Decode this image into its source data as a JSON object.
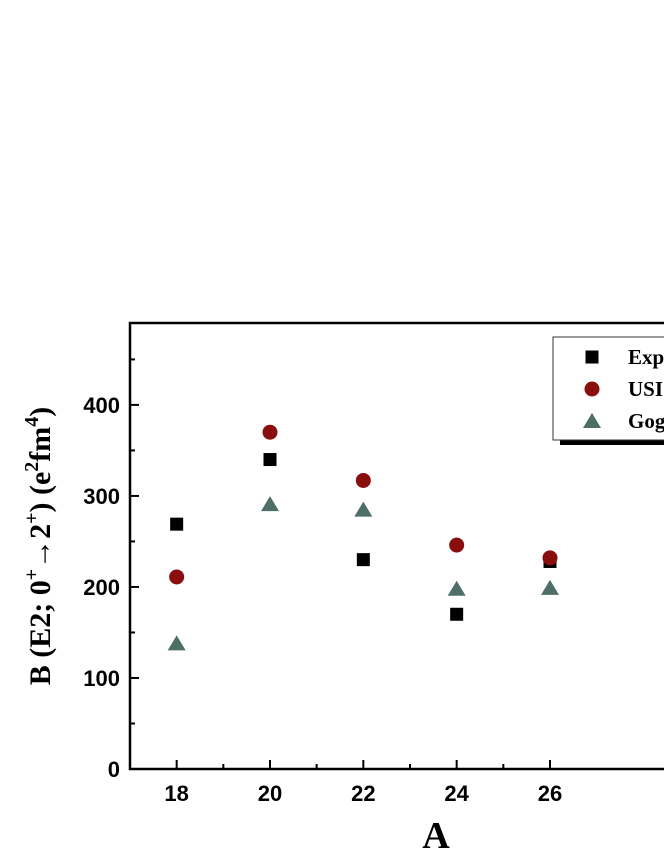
{
  "chart_data": {
    "type": "scatter",
    "title": "",
    "xlabel": "A",
    "ylabel_parts": {
      "lead": "B (E2; 0",
      "sup1": "+",
      "arrow": "→",
      "mid": "2",
      "sup2": "+",
      "unit_open": ") (e",
      "sup3": "2",
      "unit_mid": "fm",
      "sup4": "4",
      "unit_close": ")"
    },
    "x": [
      18,
      20,
      22,
      24,
      26
    ],
    "xticks": [
      18,
      20,
      22,
      24,
      26
    ],
    "yticks": [
      0,
      100,
      200,
      300,
      400
    ],
    "xlim": [
      17,
      29
    ],
    "ylim": [
      0,
      490
    ],
    "grid": false,
    "legend_position": "top-right",
    "series": [
      {
        "name": "Exp",
        "marker": "square",
        "color": "#000000",
        "values": [
          269,
          340,
          230,
          170,
          228
        ]
      },
      {
        "name": "USI",
        "marker": "circle",
        "color": "#8b0e0e",
        "values": [
          211,
          370,
          317,
          246,
          232
        ]
      },
      {
        "name": "Gog",
        "marker": "triangle",
        "color": "#4e6e68",
        "values": [
          138,
          291,
          285,
          198,
          199
        ]
      }
    ]
  }
}
